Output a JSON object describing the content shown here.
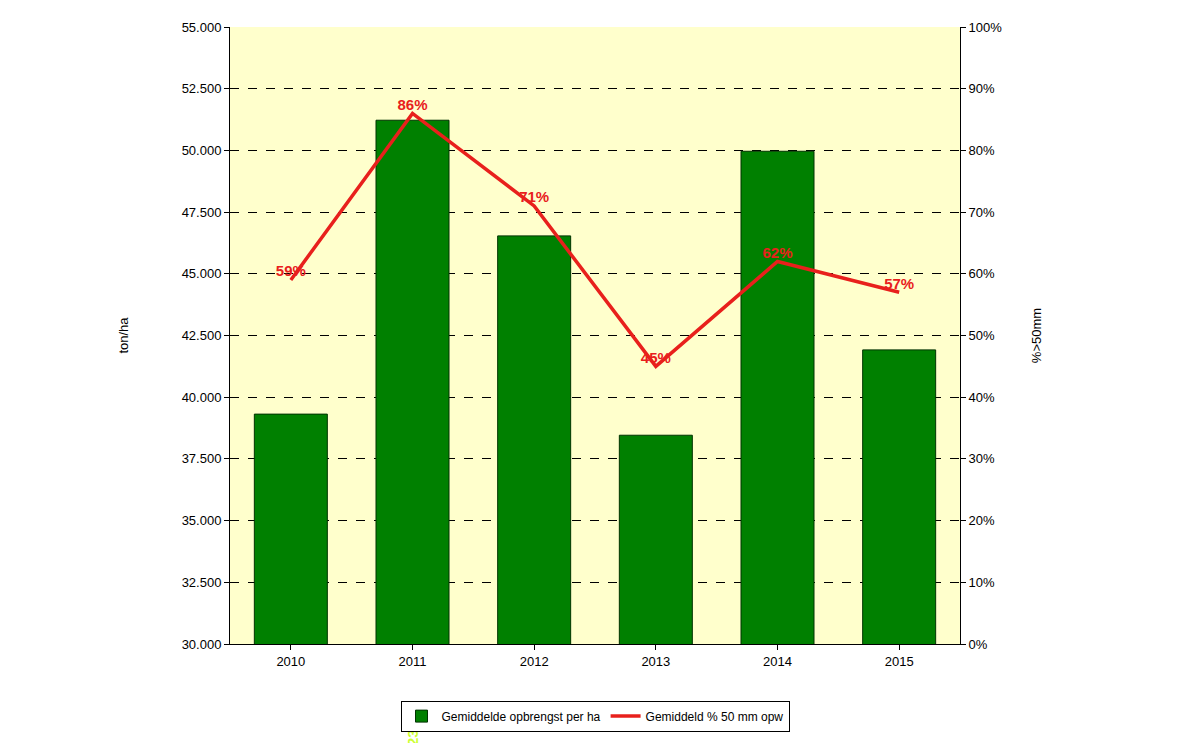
{
  "chart_data": {
    "type": "bar",
    "categories": [
      "2010",
      "2011",
      "2012",
      "2013",
      "2014",
      "2015"
    ],
    "y_label": "ton/ha",
    "y2_label": "%>50mm",
    "ylim": [
      30,
      55
    ],
    "yticks": [
      {
        "value": 30,
        "label": "30.000"
      },
      {
        "value": 32.5,
        "label": "32.500"
      },
      {
        "value": 35,
        "label": "35.000"
      },
      {
        "value": 37.5,
        "label": "37.500"
      },
      {
        "value": 40,
        "label": "40.000"
      },
      {
        "value": 42.5,
        "label": "42.500"
      },
      {
        "value": 45,
        "label": "45.000"
      },
      {
        "value": 47.5,
        "label": "47.500"
      },
      {
        "value": 50,
        "label": "50.000"
      },
      {
        "value": 52.5,
        "label": "52.500"
      },
      {
        "value": 55,
        "label": "55.000"
      }
    ],
    "y2lim": [
      0,
      100
    ],
    "y2ticks": [
      {
        "value": 0,
        "label": "0%"
      },
      {
        "value": 10,
        "label": "10%"
      },
      {
        "value": 20,
        "label": "20%"
      },
      {
        "value": 30,
        "label": "30%"
      },
      {
        "value": 40,
        "label": "40%"
      },
      {
        "value": 50,
        "label": "50%"
      },
      {
        "value": 60,
        "label": "60%"
      },
      {
        "value": 70,
        "label": "70%"
      },
      {
        "value": 80,
        "label": "80%"
      },
      {
        "value": 90,
        "label": "90%"
      },
      {
        "value": 100,
        "label": "100%"
      }
    ],
    "grid": true,
    "legend": "bottom",
    "data_labels": true,
    "series": [
      {
        "name": "Gemiddelde opbrengst per ha",
        "type": "bar",
        "color": "#008000",
        "values": [
          39.315,
          51.223,
          46.536,
          38.459,
          49.965,
          41.917
        ]
      },
      {
        "name": "Gemiddeld % 50 mm opw",
        "type": "line",
        "color": "#e8201c",
        "axis": "y2",
        "values": [
          59,
          86,
          71,
          45,
          62,
          57
        ],
        "value_labels": [
          "59%",
          "86%",
          "71%",
          "45%",
          "62%",
          "57%"
        ]
      }
    ]
  }
}
